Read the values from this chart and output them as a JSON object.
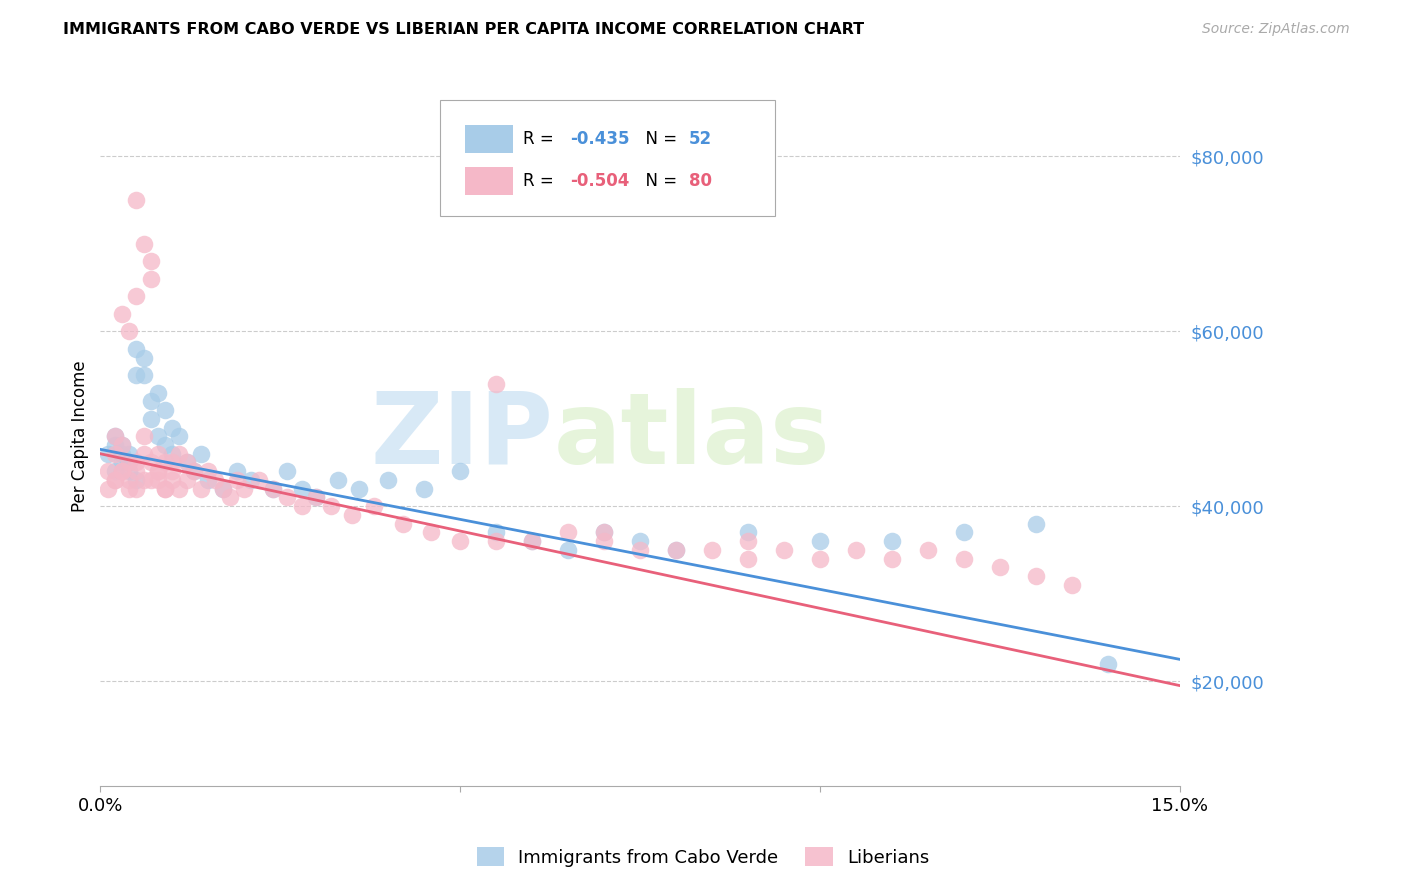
{
  "title": "IMMIGRANTS FROM CABO VERDE VS LIBERIAN PER CAPITA INCOME CORRELATION CHART",
  "source": "Source: ZipAtlas.com",
  "ylabel_label": "Per Capita Income",
  "x_min": 0.0,
  "x_max": 0.15,
  "y_min": 8000,
  "y_max": 88000,
  "yticks": [
    20000,
    40000,
    60000,
    80000
  ],
  "xticks": [
    0.0,
    0.05,
    0.1,
    0.15
  ],
  "blue_color": "#a8cce8",
  "pink_color": "#f5b8c8",
  "blue_line_color": "#4a90d9",
  "pink_line_color": "#e8607a",
  "legend_label_color": "#4a90d9",
  "R_blue": -0.435,
  "N_blue": 52,
  "R_pink": -0.504,
  "N_pink": 80,
  "watermark": "ZIPatlas",
  "blue_scatter_x": [
    0.001,
    0.002,
    0.002,
    0.002,
    0.003,
    0.003,
    0.003,
    0.004,
    0.004,
    0.004,
    0.005,
    0.005,
    0.005,
    0.006,
    0.006,
    0.007,
    0.007,
    0.008,
    0.008,
    0.009,
    0.009,
    0.01,
    0.01,
    0.011,
    0.012,
    0.013,
    0.014,
    0.015,
    0.017,
    0.019,
    0.021,
    0.024,
    0.026,
    0.028,
    0.03,
    0.033,
    0.036,
    0.04,
    0.045,
    0.05,
    0.055,
    0.06,
    0.065,
    0.07,
    0.075,
    0.08,
    0.09,
    0.1,
    0.11,
    0.12,
    0.13,
    0.14
  ],
  "blue_scatter_y": [
    46000,
    44000,
    47000,
    48000,
    45000,
    46000,
    47000,
    44000,
    45000,
    46000,
    43000,
    55000,
    58000,
    57000,
    55000,
    52000,
    50000,
    48000,
    53000,
    51000,
    47000,
    49000,
    46000,
    48000,
    45000,
    44000,
    46000,
    43000,
    42000,
    44000,
    43000,
    42000,
    44000,
    42000,
    41000,
    43000,
    42000,
    43000,
    42000,
    44000,
    37000,
    36000,
    35000,
    37000,
    36000,
    35000,
    37000,
    36000,
    36000,
    37000,
    38000,
    22000
  ],
  "pink_scatter_x": [
    0.001,
    0.002,
    0.002,
    0.002,
    0.003,
    0.003,
    0.003,
    0.004,
    0.004,
    0.004,
    0.005,
    0.005,
    0.005,
    0.005,
    0.006,
    0.006,
    0.006,
    0.007,
    0.007,
    0.007,
    0.008,
    0.008,
    0.008,
    0.009,
    0.009,
    0.01,
    0.01,
    0.011,
    0.011,
    0.012,
    0.012,
    0.013,
    0.014,
    0.015,
    0.016,
    0.017,
    0.018,
    0.019,
    0.02,
    0.022,
    0.024,
    0.026,
    0.028,
    0.03,
    0.032,
    0.035,
    0.038,
    0.042,
    0.046,
    0.05,
    0.055,
    0.06,
    0.065,
    0.07,
    0.075,
    0.08,
    0.085,
    0.09,
    0.095,
    0.1,
    0.105,
    0.11,
    0.115,
    0.12,
    0.125,
    0.13,
    0.135,
    0.055,
    0.07,
    0.09,
    0.001,
    0.002,
    0.003,
    0.004,
    0.005,
    0.006,
    0.007,
    0.008,
    0.009,
    0.01
  ],
  "pink_scatter_y": [
    44000,
    43000,
    46000,
    48000,
    44000,
    47000,
    62000,
    43000,
    45000,
    60000,
    42000,
    44000,
    64000,
    45000,
    43000,
    46000,
    48000,
    43000,
    45000,
    66000,
    43000,
    44000,
    46000,
    42000,
    45000,
    43000,
    44000,
    46000,
    42000,
    43000,
    45000,
    44000,
    42000,
    44000,
    43000,
    42000,
    41000,
    43000,
    42000,
    43000,
    42000,
    41000,
    40000,
    41000,
    40000,
    39000,
    40000,
    38000,
    37000,
    36000,
    36000,
    36000,
    37000,
    36000,
    35000,
    35000,
    35000,
    34000,
    35000,
    34000,
    35000,
    34000,
    35000,
    34000,
    33000,
    32000,
    31000,
    54000,
    37000,
    36000,
    42000,
    43000,
    44000,
    42000,
    75000,
    70000,
    68000,
    44000,
    42000,
    45000
  ]
}
